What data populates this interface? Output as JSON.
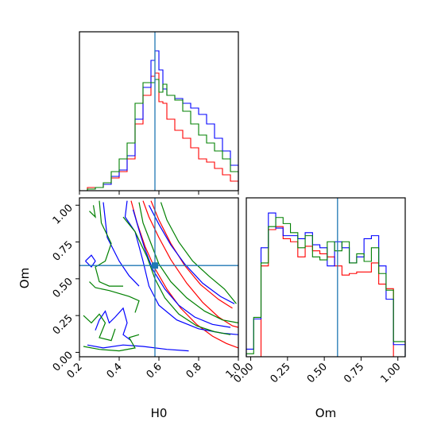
{
  "chart_data": [
    {
      "type": "histogram",
      "panel": "H0 marginal (top-left)",
      "xlim": [
        0.2,
        1.0
      ],
      "bin_edges": [
        0.2,
        0.24,
        0.28,
        0.32,
        0.36,
        0.4,
        0.44,
        0.48,
        0.52,
        0.56,
        0.58,
        0.6,
        0.62,
        0.64,
        0.68,
        0.72,
        0.76,
        0.8,
        0.84,
        0.88,
        0.92,
        0.96,
        1.0
      ],
      "series": [
        {
          "color": "#ff0000",
          "values": [
            0,
            0.02,
            0.02,
            0.04,
            0.08,
            0.12,
            0.2,
            0.42,
            0.6,
            0.72,
            0.74,
            0.56,
            0.55,
            0.45,
            0.38,
            0.33,
            0.27,
            0.2,
            0.18,
            0.14,
            0.1,
            0.06
          ]
        },
        {
          "color": "#0000ff",
          "values": [
            0,
            0.01,
            0.02,
            0.04,
            0.09,
            0.13,
            0.22,
            0.45,
            0.65,
            0.82,
            0.88,
            0.76,
            0.64,
            0.6,
            0.58,
            0.55,
            0.52,
            0.48,
            0.42,
            0.33,
            0.25,
            0.16
          ]
        },
        {
          "color": "#008000",
          "values": [
            0,
            0.01,
            0.02,
            0.05,
            0.12,
            0.2,
            0.3,
            0.55,
            0.68,
            0.68,
            0.7,
            0.62,
            0.67,
            0.6,
            0.57,
            0.5,
            0.42,
            0.35,
            0.3,
            0.25,
            0.2,
            0.12
          ]
        }
      ],
      "truth_x": 0.58
    },
    {
      "type": "contour",
      "panel": "H0 vs Om joint (bottom-left)",
      "xlabel": "H0",
      "ylabel": "Om",
      "xlim": [
        0.2,
        1.0
      ],
      "ylim": [
        -0.03,
        1.05
      ],
      "xticks": [
        "0.2",
        "0.4",
        "0.6",
        "0.8",
        "1.0"
      ],
      "yticks": [
        "0.00",
        "0.25",
        "0.50",
        "0.75",
        "1.00"
      ],
      "truth": {
        "x": 0.58,
        "y": 0.59
      },
      "series": [
        {
          "color": "#ff0000",
          "contours": [
            [
              [
                0.52,
                1.03
              ],
              [
                0.55,
                0.92
              ],
              [
                0.6,
                0.78
              ],
              [
                0.66,
                0.63
              ],
              [
                0.74,
                0.47
              ],
              [
                0.82,
                0.34
              ],
              [
                0.9,
                0.24
              ],
              [
                0.97,
                0.18
              ],
              [
                1.0,
                0.17
              ]
            ],
            [
              [
                0.46,
                1.03
              ],
              [
                0.49,
                0.88
              ],
              [
                0.53,
                0.72
              ],
              [
                0.58,
                0.57
              ],
              [
                0.64,
                0.43
              ],
              [
                0.71,
                0.3
              ],
              [
                0.79,
                0.19
              ],
              [
                0.87,
                0.11
              ],
              [
                0.94,
                0.06
              ],
              [
                1.0,
                0.03
              ]
            ],
            [
              [
                0.56,
                1.03
              ],
              [
                0.6,
                0.9
              ],
              [
                0.66,
                0.74
              ],
              [
                0.73,
                0.59
              ],
              [
                0.81,
                0.46
              ],
              [
                0.9,
                0.36
              ],
              [
                0.97,
                0.3
              ]
            ]
          ]
        },
        {
          "color": "#0000ff",
          "contours": [
            [
              [
                0.55,
                1.0
              ],
              [
                0.6,
                0.87
              ],
              [
                0.66,
                0.73
              ],
              [
                0.73,
                0.6
              ],
              [
                0.82,
                0.47
              ],
              [
                0.91,
                0.38
              ],
              [
                0.98,
                0.33
              ]
            ],
            [
              [
                0.47,
                0.97
              ],
              [
                0.5,
                0.83
              ],
              [
                0.53,
                0.7
              ],
              [
                0.57,
                0.56
              ],
              [
                0.63,
                0.43
              ],
              [
                0.7,
                0.32
              ],
              [
                0.78,
                0.24
              ],
              [
                0.87,
                0.19
              ],
              [
                0.96,
                0.17
              ]
            ],
            [
              [
                0.44,
                1.03
              ],
              [
                0.43,
                0.92
              ],
              [
                0.48,
                0.82
              ],
              [
                0.52,
                0.62
              ],
              [
                0.55,
                0.45
              ],
              [
                0.6,
                0.32
              ],
              [
                0.69,
                0.22
              ],
              [
                0.8,
                0.16
              ],
              [
                0.92,
                0.13
              ],
              [
                1.0,
                0.12
              ]
            ],
            [
              [
                0.32,
                1.02
              ],
              [
                0.34,
                0.78
              ],
              [
                0.4,
                0.62
              ],
              [
                0.45,
                0.52
              ],
              [
                0.5,
                0.45
              ]
            ],
            [
              [
                0.23,
                0.62
              ],
              [
                0.26,
                0.58
              ],
              [
                0.28,
                0.62
              ],
              [
                0.26,
                0.66
              ],
              [
                0.23,
                0.62
              ]
            ],
            [
              [
                0.28,
                0.15
              ],
              [
                0.3,
                0.22
              ],
              [
                0.33,
                0.28
              ],
              [
                0.35,
                0.2
              ],
              [
                0.38,
                0.24
              ],
              [
                0.42,
                0.3
              ],
              [
                0.44,
                0.2
              ],
              [
                0.42,
                0.12
              ],
              [
                0.46,
                0.08
              ]
            ],
            [
              [
                0.24,
                0.05
              ],
              [
                0.32,
                0.03
              ],
              [
                0.42,
                0.05
              ],
              [
                0.52,
                0.04
              ],
              [
                0.64,
                0.02
              ],
              [
                0.75,
                0.01
              ]
            ]
          ]
        },
        {
          "color": "#008000",
          "contours": [
            [
              [
                0.61,
                1.02
              ],
              [
                0.64,
                0.9
              ],
              [
                0.7,
                0.75
              ],
              [
                0.77,
                0.62
              ],
              [
                0.85,
                0.52
              ],
              [
                0.93,
                0.43
              ],
              [
                0.99,
                0.33
              ]
            ],
            [
              [
                0.5,
                1.02
              ],
              [
                0.52,
                0.88
              ],
              [
                0.56,
                0.74
              ],
              [
                0.6,
                0.6
              ],
              [
                0.66,
                0.48
              ],
              [
                0.74,
                0.37
              ],
              [
                0.83,
                0.28
              ],
              [
                0.92,
                0.22
              ],
              [
                1.0,
                0.2
              ]
            ],
            [
              [
                0.42,
                0.92
              ],
              [
                0.48,
                0.82
              ],
              [
                0.54,
                0.65
              ],
              [
                0.58,
                0.5
              ],
              [
                0.63,
                0.37
              ],
              [
                0.7,
                0.26
              ],
              [
                0.79,
                0.18
              ],
              [
                0.88,
                0.14
              ],
              [
                0.96,
                0.12
              ]
            ],
            [
              [
                0.3,
                1.03
              ],
              [
                0.31,
                0.88
              ],
              [
                0.36,
                0.74
              ],
              [
                0.33,
                0.62
              ],
              [
                0.28,
                0.58
              ],
              [
                0.3,
                0.48
              ],
              [
                0.35,
                0.45
              ],
              [
                0.42,
                0.45
              ]
            ],
            [
              [
                0.25,
                0.48
              ],
              [
                0.28,
                0.44
              ],
              [
                0.35,
                0.42
              ],
              [
                0.45,
                0.38
              ],
              [
                0.5,
                0.35
              ],
              [
                0.48,
                0.27
              ]
            ],
            [
              [
                0.22,
                0.25
              ],
              [
                0.26,
                0.2
              ],
              [
                0.3,
                0.26
              ],
              [
                0.33,
                0.2
              ],
              [
                0.3,
                0.1
              ],
              [
                0.36,
                0.08
              ],
              [
                0.38,
                0.16
              ]
            ],
            [
              [
                0.22,
                0.04
              ],
              [
                0.3,
                0.02
              ],
              [
                0.4,
                0.01
              ],
              [
                0.48,
                0.03
              ],
              [
                0.45,
                0.1
              ],
              [
                0.5,
                0.12
              ]
            ],
            [
              [
                0.25,
                0.96
              ],
              [
                0.28,
                0.92
              ],
              [
                0.27,
                1.0
              ]
            ]
          ]
        }
      ]
    },
    {
      "type": "histogram",
      "panel": "Om marginal (bottom-right)",
      "xlabel": "Om",
      "xlim": [
        -0.03,
        1.05
      ],
      "xticks": [
        "0.00",
        "0.25",
        "0.50",
        "0.75",
        "1.00"
      ],
      "bin_edges": [
        -0.03,
        0.02,
        0.07,
        0.12,
        0.17,
        0.22,
        0.27,
        0.32,
        0.37,
        0.42,
        0.47,
        0.52,
        0.57,
        0.62,
        0.67,
        0.72,
        0.77,
        0.82,
        0.87,
        0.92,
        0.97,
        1.0,
        1.05
      ],
      "series": [
        {
          "color": "#ff0000",
          "values": [
            0.0,
            0.0,
            0.6,
            0.84,
            0.86,
            0.78,
            0.76,
            0.66,
            0.73,
            0.7,
            0.68,
            0.66,
            0.6,
            0.54,
            0.55,
            0.56,
            0.56,
            0.62,
            0.48,
            0.45,
            0.0,
            0.0
          ]
        },
        {
          "color": "#0000ff",
          "values": [
            0.05,
            0.25,
            0.72,
            0.95,
            0.85,
            0.8,
            0.8,
            0.78,
            0.82,
            0.74,
            0.72,
            0.6,
            0.76,
            0.72,
            0.62,
            0.66,
            0.78,
            0.8,
            0.6,
            0.38,
            0.08,
            0.08
          ]
        },
        {
          "color": "#008000",
          "values": [
            0.02,
            0.26,
            0.62,
            0.86,
            0.92,
            0.88,
            0.82,
            0.72,
            0.8,
            0.66,
            0.64,
            0.76,
            0.7,
            0.76,
            0.62,
            0.68,
            0.63,
            0.72,
            0.55,
            0.44,
            0.1,
            0.1
          ]
        }
      ],
      "truth_x": 0.59
    }
  ]
}
